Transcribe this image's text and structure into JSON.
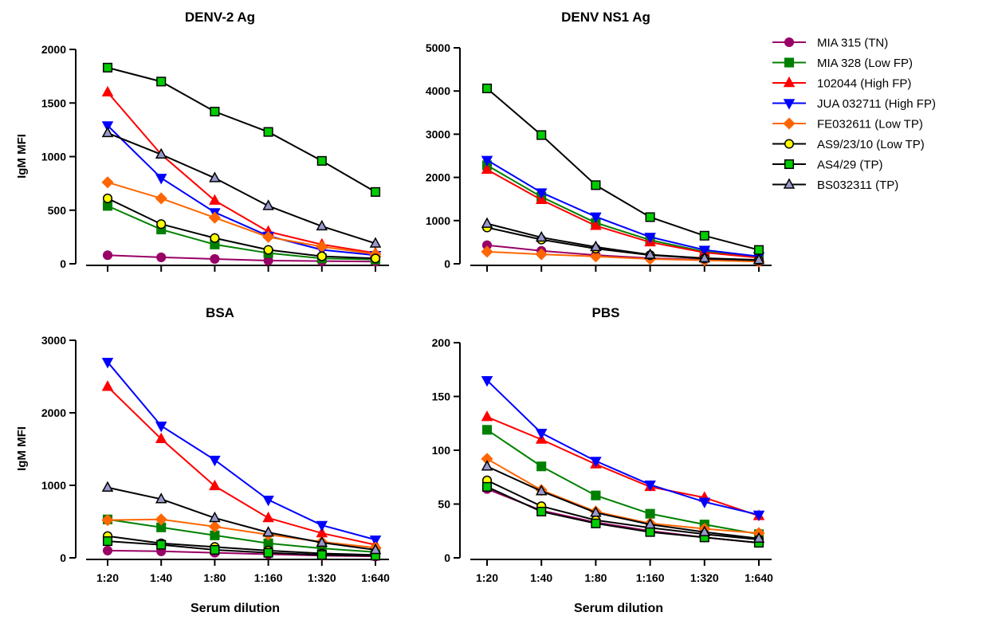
{
  "chart_data": [
    {
      "type": "line",
      "title": "DENV-2 Ag",
      "ylabel": "IgM MFI",
      "xlabel": "",
      "categories": [
        "1:20",
        "1:40",
        "1:80",
        "1:160",
        "1:320",
        "1:640"
      ],
      "ylim": [
        0,
        2000
      ],
      "yticks": [
        0,
        500,
        1000,
        1500,
        2000
      ],
      "show_x_tick_labels": false,
      "series": [
        {
          "name": "MIA 315 (TN)",
          "values": [
            80,
            60,
            45,
            30,
            25,
            20
          ]
        },
        {
          "name": "MIA 328 (Low FP)",
          "values": [
            540,
            320,
            180,
            100,
            50,
            40
          ]
        },
        {
          "name": "102044 (High FP)",
          "values": [
            1600,
            1020,
            590,
            300,
            180,
            100
          ]
        },
        {
          "name": "JUA 032711 (High FP)",
          "values": [
            1290,
            800,
            480,
            260,
            130,
            80
          ]
        },
        {
          "name": "FE032611 (Low TP)",
          "values": [
            760,
            610,
            430,
            250,
            160,
            90
          ]
        },
        {
          "name": "AS9/23/10 (Low TP)",
          "values": [
            610,
            370,
            240,
            130,
            70,
            50
          ]
        },
        {
          "name": "AS4/29 (TP)",
          "values": [
            1830,
            1700,
            1420,
            1230,
            960,
            670
          ]
        },
        {
          "name": "BS032311 (TP)",
          "values": [
            1220,
            1020,
            800,
            540,
            350,
            190
          ]
        }
      ]
    },
    {
      "type": "line",
      "title": "DENV NS1 Ag",
      "ylabel": "",
      "xlabel": "",
      "categories": [
        "1:20",
        "1:40",
        "1:80",
        "1:160",
        "1:320",
        "1:640"
      ],
      "ylim": [
        0,
        5000
      ],
      "yticks": [
        0,
        1000,
        2000,
        3000,
        4000,
        5000
      ],
      "show_x_tick_labels": false,
      "series": [
        {
          "name": "MIA 315 (TN)",
          "values": [
            430,
            300,
            200,
            130,
            90,
            60
          ]
        },
        {
          "name": "MIA 328 (Low FP)",
          "values": [
            2280,
            1550,
            950,
            550,
            280,
            150
          ]
        },
        {
          "name": "102044 (High FP)",
          "values": [
            2180,
            1480,
            880,
            500,
            260,
            140
          ]
        },
        {
          "name": "JUA 032711 (High FP)",
          "values": [
            2400,
            1650,
            1090,
            620,
            320,
            170
          ]
        },
        {
          "name": "FE032611 (Low TP)",
          "values": [
            280,
            220,
            170,
            110,
            80,
            50
          ]
        },
        {
          "name": "AS9/23/10 (Low TP)",
          "values": [
            840,
            560,
            350,
            200,
            120,
            80
          ]
        },
        {
          "name": "AS4/29 (TP)",
          "values": [
            4060,
            2980,
            1820,
            1080,
            650,
            320
          ]
        },
        {
          "name": "BS032311 (TP)",
          "values": [
            930,
            610,
            390,
            210,
            130,
            90
          ]
        }
      ]
    },
    {
      "type": "line",
      "title": "BSA",
      "ylabel": "IgM MFI",
      "xlabel": "Serum dilution",
      "categories": [
        "1:20",
        "1:40",
        "1:80",
        "1:160",
        "1:320",
        "1:640"
      ],
      "ylim": [
        0,
        3000
      ],
      "yticks": [
        0,
        1000,
        2000,
        3000
      ],
      "show_x_tick_labels": true,
      "series": [
        {
          "name": "MIA 315 (TN)",
          "values": [
            100,
            90,
            70,
            50,
            30,
            20
          ]
        },
        {
          "name": "MIA 328 (Low FP)",
          "values": [
            530,
            420,
            310,
            200,
            130,
            80
          ]
        },
        {
          "name": "102044 (High FP)",
          "values": [
            2360,
            1640,
            990,
            550,
            340,
            180
          ]
        },
        {
          "name": "JUA 032711 (High FP)",
          "values": [
            2700,
            1820,
            1350,
            800,
            450,
            250
          ]
        },
        {
          "name": "FE032611 (Low TP)",
          "values": [
            520,
            530,
            430,
            320,
            220,
            140
          ]
        },
        {
          "name": "AS9/23/10 (Low TP)",
          "values": [
            300,
            200,
            150,
            100,
            60,
            40
          ]
        },
        {
          "name": "AS4/29 (TP)",
          "values": [
            230,
            180,
            110,
            70,
            40,
            30
          ]
        },
        {
          "name": "BS032311 (TP)",
          "values": [
            970,
            810,
            550,
            350,
            210,
            110
          ]
        }
      ]
    },
    {
      "type": "line",
      "title": "PBS",
      "ylabel": "",
      "xlabel": "Serum dilution",
      "categories": [
        "1:20",
        "1:40",
        "1:80",
        "1:160",
        "1:320",
        "1:640"
      ],
      "ylim": [
        0,
        200
      ],
      "yticks": [
        0,
        50,
        100,
        150,
        200
      ],
      "show_x_tick_labels": true,
      "series": [
        {
          "name": "MIA 315 (TN)",
          "values": [
            64,
            44,
            33,
            25,
            19,
            14
          ]
        },
        {
          "name": "MIA 328 (Low FP)",
          "values": [
            119,
            85,
            58,
            41,
            31,
            22
          ]
        },
        {
          "name": "102044 (High FP)",
          "values": [
            131,
            110,
            87,
            66,
            56,
            39
          ]
        },
        {
          "name": "JUA 032711 (High FP)",
          "values": [
            165,
            116,
            90,
            68,
            52,
            40
          ]
        },
        {
          "name": "FE032611 (Low TP)",
          "values": [
            92,
            63,
            43,
            32,
            27,
            23
          ]
        },
        {
          "name": "AS9/23/10 (Low TP)",
          "values": [
            72,
            48,
            35,
            28,
            22,
            17
          ]
        },
        {
          "name": "AS4/29 (TP)",
          "values": [
            66,
            43,
            32,
            24,
            19,
            14
          ]
        },
        {
          "name": "BS032311 (TP)",
          "values": [
            85,
            62,
            42,
            31,
            24,
            18
          ]
        }
      ]
    }
  ],
  "legend": {
    "placement": "right",
    "entries": [
      {
        "name": "MIA 315 (TN)",
        "color": "#990066",
        "line": "#990066",
        "marker": "circle",
        "stroke": "#990066"
      },
      {
        "name": "MIA 328 (Low FP)",
        "color": "#008000",
        "line": "#008000",
        "marker": "square",
        "stroke": "#008000"
      },
      {
        "name": "102044 (High FP)",
        "color": "#ff0000",
        "line": "#ff0000",
        "marker": "triangle-up",
        "stroke": "#ff0000"
      },
      {
        "name": "JUA 032711 (High FP)",
        "color": "#0000ff",
        "line": "#0000ff",
        "marker": "triangle-down",
        "stroke": "#0000ff"
      },
      {
        "name": "FE032611 (Low TP)",
        "color": "#ff6600",
        "line": "#ff6600",
        "marker": "diamond",
        "stroke": "#ff6600"
      },
      {
        "name": "AS9/23/10 (Low TP)",
        "color": "#ffff00",
        "line": "#000000",
        "marker": "circle",
        "stroke": "#000000"
      },
      {
        "name": "AS4/29 (TP)",
        "color": "#00cc00",
        "line": "#000000",
        "marker": "square",
        "stroke": "#000000"
      },
      {
        "name": "BS032311 (TP)",
        "color": "#9999cc",
        "line": "#000000",
        "marker": "triangle-up",
        "stroke": "#000000"
      }
    ]
  }
}
